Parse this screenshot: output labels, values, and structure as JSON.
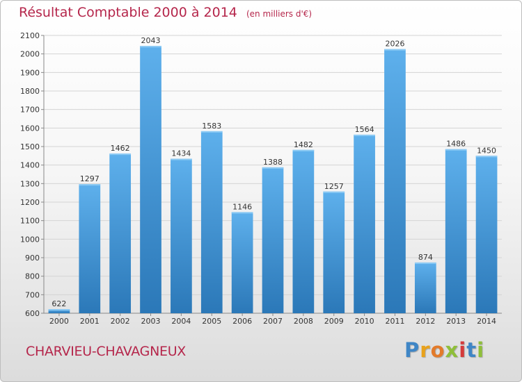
{
  "title": "Résultat Comptable 2000 à 2014",
  "subtitle": "(en milliers d'€)",
  "place": "CHARVIEU-CHAVAGNEUX",
  "brand": {
    "letters": [
      {
        "char": "P",
        "color": "#3f86c6"
      },
      {
        "char": "r",
        "color": "#e9a21c"
      },
      {
        "char": "o",
        "color": "#e37b2b"
      },
      {
        "char": "x",
        "color": "#8fbf3a"
      },
      {
        "char": "i",
        "color": "#d43b3b"
      },
      {
        "char": "t",
        "color": "#3f86c6"
      },
      {
        "char": "i",
        "color": "#8fbf3a"
      }
    ]
  },
  "colors": {
    "title": "#b5264b",
    "bar_top": "#5eb0ec",
    "bar_bottom": "#2b78b8",
    "grid": "#d4d4d4"
  },
  "chart_data": {
    "type": "bar",
    "title": "Résultat Comptable 2000 à 2014",
    "subtitle": "(en milliers d'€)",
    "xlabel": "",
    "ylabel": "",
    "ylim": [
      600,
      2100
    ],
    "yticks": [
      600,
      700,
      800,
      900,
      1000,
      1100,
      1200,
      1300,
      1400,
      1500,
      1600,
      1700,
      1800,
      1900,
      2000,
      2100
    ],
    "grid": true,
    "categories": [
      "2000",
      "2001",
      "2002",
      "2003",
      "2004",
      "2005",
      "2006",
      "2007",
      "2008",
      "2009",
      "2010",
      "2011",
      "2012",
      "2013",
      "2014"
    ],
    "values": [
      622,
      1297,
      1462,
      2043,
      1434,
      1583,
      1146,
      1388,
      1482,
      1257,
      1564,
      2026,
      874,
      1486,
      1450
    ]
  }
}
